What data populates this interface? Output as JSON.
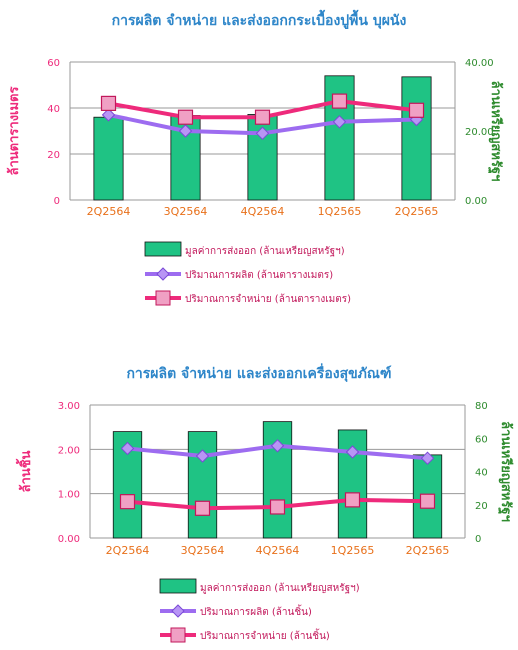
{
  "colors": {
    "bars": "#1fc384",
    "production": "#9d6cf0",
    "sales": "#ee2a7b",
    "left_axis": "#ee2a7b",
    "right_axis": "#2e8b2e",
    "category": "#e8701a",
    "title": "#2e86c9",
    "grid": "#9a9a9a"
  },
  "chart_data": [
    {
      "type": "bar",
      "title": "การผลิต จำหน่าย และส่งออกกระเบื้องปูพื้น บุผนัง",
      "categories": [
        "2Q2564",
        "3Q2564",
        "4Q2564",
        "1Q2565",
        "2Q2565"
      ],
      "ylabel_left": "ล้านตารางเมตร",
      "ylabel_right": "ล้านเหรียญสหรัฐฯ",
      "ylim_left": [
        0,
        60
      ],
      "ylim_right": [
        0,
        40
      ],
      "yticks_left": [
        "0",
        "20",
        "40",
        "60"
      ],
      "yticks_right": [
        "0.00",
        "20.00",
        "40.00"
      ],
      "grid": true,
      "legend_position": "bottom",
      "series": [
        {
          "name": "มูลค่าการส่งออก (ล้านเหรียญสหรัฐฯ)",
          "type": "bar",
          "axis": "right",
          "values": [
            24.0,
            24.5,
            24.8,
            36.0,
            35.7
          ]
        },
        {
          "name": "ปริมาณการผลิต (ล้านตารางเมตร)",
          "type": "line",
          "axis": "left",
          "values": [
            37,
            30,
            29,
            34,
            35
          ]
        },
        {
          "name": "ปริมาณการจำหน่าย (ล้านตารางเมตร)",
          "type": "line",
          "axis": "left",
          "values": [
            42,
            36,
            36,
            43,
            39
          ]
        }
      ]
    },
    {
      "type": "bar",
      "title": "การผลิต จำหน่าย และส่งออกเครื่องสุขภัณฑ์",
      "categories": [
        "2Q2564",
        "3Q2564",
        "4Q2564",
        "1Q2565",
        "2Q2565"
      ],
      "ylabel_left": "ล้านชิ้น",
      "ylabel_right": "ล้านเหรียญสหรัฐฯ",
      "ylim_left": [
        0,
        3
      ],
      "ylim_right": [
        0,
        80
      ],
      "yticks_left": [
        "0.00",
        "1.00",
        "2.00",
        "3.00"
      ],
      "yticks_right": [
        "0",
        "20",
        "40",
        "60",
        "80"
      ],
      "grid": true,
      "legend_position": "bottom",
      "series": [
        {
          "name": "มูลค่าการส่งออก (ล้านเหรียญสหรัฐฯ)",
          "type": "bar",
          "axis": "right",
          "values": [
            64,
            64,
            70,
            65,
            50
          ]
        },
        {
          "name": "ปริมาณการผลิต (ล้านชิ้น)",
          "type": "line",
          "axis": "left",
          "values": [
            2.02,
            1.85,
            2.08,
            1.94,
            1.8
          ]
        },
        {
          "name": "ปริมาณการจำหน่าย (ล้านชิ้น)",
          "type": "line",
          "axis": "left",
          "values": [
            0.82,
            0.67,
            0.7,
            0.86,
            0.83
          ]
        }
      ]
    }
  ]
}
